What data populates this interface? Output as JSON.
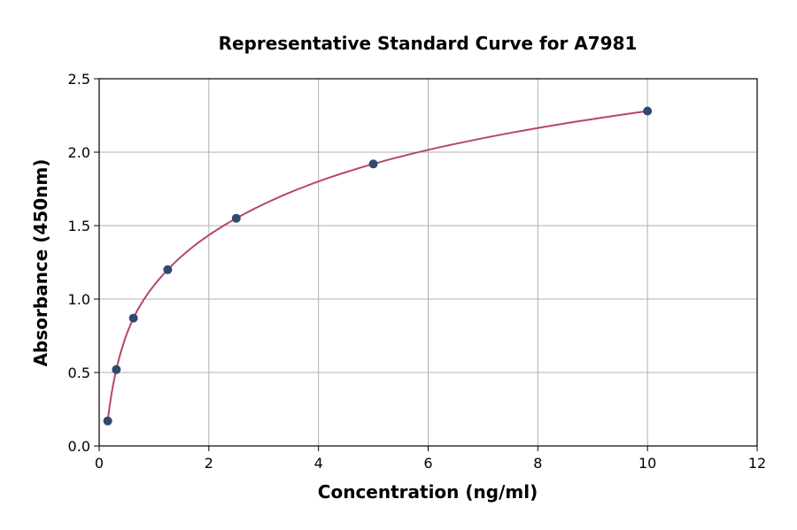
{
  "chart_data": {
    "type": "scatter",
    "title": "Representative Standard Curve for A7981",
    "xlabel": "Concentration (ng/ml)",
    "ylabel": "Absorbance (450nm)",
    "xlim": [
      0,
      12
    ],
    "ylim": [
      0,
      2.5
    ],
    "xticks": [
      0,
      2,
      4,
      6,
      8,
      10,
      12
    ],
    "yticks": [
      0.0,
      0.5,
      1.0,
      1.5,
      2.0,
      2.5
    ],
    "grid": true,
    "x": [
      0.156,
      0.313,
      0.625,
      1.25,
      2.5,
      5,
      10
    ],
    "y": [
      0.17,
      0.52,
      0.87,
      1.2,
      1.55,
      1.92,
      2.28
    ],
    "point_color": "#2e4a6e",
    "curve_color": "#b5476a",
    "fit": "smooth curve through points"
  }
}
